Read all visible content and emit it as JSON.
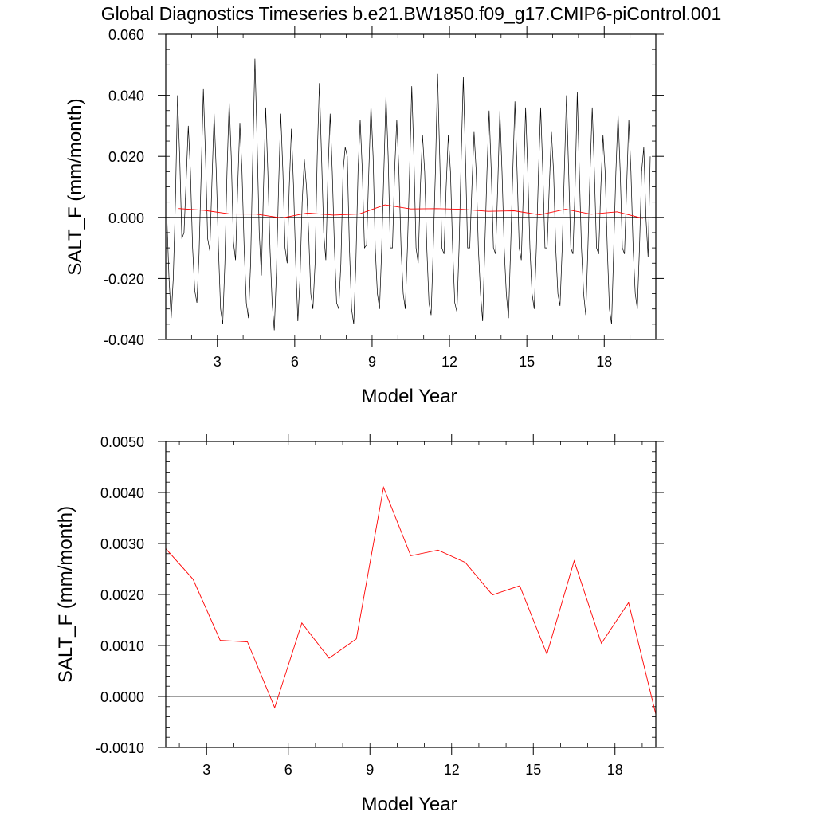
{
  "title": "Global Diagnostics Timeseries b.e21.BW1850.f09_g17.CMIP6-piControl.001",
  "colors": {
    "monthly": "#000000",
    "annual": "#ff0000",
    "zero_line": "#000000"
  },
  "chart_data": [
    {
      "type": "line",
      "xlabel": "Model Year",
      "ylabel": "SALT_F (mm/month)",
      "xlim": [
        1.0,
        20.0
      ],
      "ylim": [
        -0.04,
        0.06
      ],
      "x_ticks": [
        {
          "value": 3,
          "label": "3"
        },
        {
          "value": 6,
          "label": "6"
        },
        {
          "value": 9,
          "label": "9"
        },
        {
          "value": 12,
          "label": "12"
        },
        {
          "value": 15,
          "label": "15"
        },
        {
          "value": 18,
          "label": "18"
        }
      ],
      "y_ticks": [
        {
          "value": -0.04,
          "label": "-0.040"
        },
        {
          "value": -0.02,
          "label": "-0.020"
        },
        {
          "value": 0.0,
          "label": "0.000"
        },
        {
          "value": 0.02,
          "label": "0.020"
        },
        {
          "value": 0.04,
          "label": "0.040"
        },
        {
          "value": 0.06,
          "label": "0.060"
        }
      ],
      "zero_line": 0,
      "series": [
        {
          "style": "monthly",
          "start_year": 1.042,
          "step": 0.0833,
          "values": [
            -0.0,
            -0.02,
            -0.033,
            -0.02,
            0.005,
            0.04,
            0.02,
            -0.007,
            -0.005,
            0.012,
            0.03,
            0.015,
            -0.01,
            -0.024,
            -0.028,
            -0.012,
            0.015,
            0.042,
            0.02,
            -0.007,
            -0.011,
            0.012,
            0.034,
            0.015,
            -0.01,
            -0.03,
            -0.035,
            -0.015,
            0.015,
            0.038,
            0.02,
            -0.008,
            -0.014,
            0.01,
            0.031,
            0.015,
            -0.01,
            -0.028,
            -0.033,
            -0.015,
            0.02,
            0.052,
            0.025,
            -0.005,
            -0.019,
            0.01,
            0.036,
            0.015,
            -0.01,
            -0.028,
            -0.037,
            -0.018,
            0.01,
            0.034,
            0.015,
            -0.01,
            -0.015,
            0.01,
            0.029,
            0.01,
            -0.015,
            -0.034,
            -0.02,
            0.005,
            0.019,
            0.01,
            -0.005,
            -0.025,
            -0.03,
            -0.015,
            0.02,
            0.044,
            0.02,
            -0.005,
            -0.014,
            0.015,
            0.034,
            0.015,
            -0.01,
            -0.028,
            -0.03,
            -0.015,
            0.015,
            0.023,
            0.02,
            -0.01,
            -0.03,
            -0.035,
            -0.015,
            0.015,
            0.032,
            0.015,
            -0.01,
            -0.009,
            0.015,
            0.037,
            0.02,
            -0.01,
            -0.025,
            -0.03,
            -0.01,
            0.015,
            0.04,
            0.02,
            -0.01,
            -0.01,
            0.015,
            0.032,
            0.015,
            -0.01,
            -0.025,
            -0.03,
            -0.01,
            0.015,
            0.043,
            0.02,
            -0.01,
            -0.015,
            0.01,
            0.027,
            0.015,
            -0.01,
            -0.028,
            -0.032,
            -0.01,
            0.015,
            0.047,
            0.02,
            -0.01,
            -0.012,
            0.01,
            0.027,
            0.015,
            -0.01,
            -0.028,
            -0.031,
            -0.01,
            0.02,
            0.046,
            0.02,
            -0.01,
            -0.01,
            0.01,
            0.028,
            0.015,
            -0.01,
            -0.025,
            -0.034,
            -0.01,
            0.015,
            0.035,
            0.015,
            -0.01,
            -0.012,
            0.01,
            0.035,
            0.015,
            -0.01,
            -0.025,
            -0.033,
            -0.01,
            0.015,
            0.038,
            0.015,
            -0.01,
            -0.014,
            0.01,
            0.036,
            0.015,
            -0.01,
            -0.025,
            -0.03,
            -0.01,
            0.015,
            0.036,
            0.015,
            -0.01,
            -0.01,
            0.01,
            0.028,
            0.015,
            -0.01,
            -0.025,
            -0.029,
            -0.01,
            0.015,
            0.04,
            0.015,
            -0.01,
            -0.012,
            0.01,
            0.041,
            0.015,
            -0.01,
            -0.025,
            -0.032,
            -0.01,
            0.015,
            0.036,
            0.015,
            -0.01,
            -0.012,
            0.01,
            0.027,
            0.015,
            -0.01,
            -0.03,
            -0.035,
            -0.01,
            0.015,
            0.034,
            0.015,
            -0.01,
            -0.012,
            0.01,
            0.032,
            0.015,
            -0.01,
            -0.025,
            -0.03,
            -0.01,
            0.015,
            0.023,
            0.0,
            -0.013,
            0.02
          ]
        },
        {
          "style": "annual",
          "x": [
            1.5,
            2.5,
            3.5,
            4.5,
            5.5,
            6.5,
            7.5,
            8.5,
            9.5,
            10.5,
            11.5,
            12.5,
            13.5,
            14.5,
            15.5,
            16.5,
            17.5,
            18.5,
            19.5
          ],
          "values": [
            0.0029,
            0.0023,
            0.0011,
            0.00107,
            -0.00022,
            0.00144,
            0.00075,
            0.00113,
            0.0041,
            0.00276,
            0.00287,
            0.00263,
            0.00199,
            0.00217,
            0.00083,
            0.00266,
            0.00104,
            0.00184,
            -0.00035
          ]
        }
      ]
    },
    {
      "type": "line",
      "xlabel": "Model Year",
      "ylabel": "SALT_F (mm/month)",
      "xlim": [
        1.5,
        19.5
      ],
      "ylim": [
        -0.001,
        0.005
      ],
      "x_ticks": [
        {
          "value": 3,
          "label": "3"
        },
        {
          "value": 6,
          "label": "6"
        },
        {
          "value": 9,
          "label": "9"
        },
        {
          "value": 12,
          "label": "12"
        },
        {
          "value": 15,
          "label": "15"
        },
        {
          "value": 18,
          "label": "18"
        }
      ],
      "y_ticks": [
        {
          "value": -0.001,
          "label": "-0.0010"
        },
        {
          "value": 0.0,
          "label": "0.0000"
        },
        {
          "value": 0.001,
          "label": "0.0010"
        },
        {
          "value": 0.002,
          "label": "0.0020"
        },
        {
          "value": 0.003,
          "label": "0.0030"
        },
        {
          "value": 0.004,
          "label": "0.0040"
        },
        {
          "value": 0.005,
          "label": "0.0050"
        }
      ],
      "zero_line": 0,
      "series": [
        {
          "style": "annual",
          "x": [
            1.5,
            2.5,
            3.5,
            4.5,
            5.5,
            6.5,
            7.5,
            8.5,
            9.5,
            10.5,
            11.5,
            12.5,
            13.5,
            14.5,
            15.5,
            16.5,
            17.5,
            18.5,
            19.5
          ],
          "values": [
            0.0029,
            0.0023,
            0.0011,
            0.00107,
            -0.00022,
            0.00144,
            0.00075,
            0.00113,
            0.0041,
            0.00276,
            0.00287,
            0.00263,
            0.00199,
            0.00217,
            0.00083,
            0.00266,
            0.00104,
            0.00184,
            -0.00035
          ]
        }
      ]
    }
  ]
}
